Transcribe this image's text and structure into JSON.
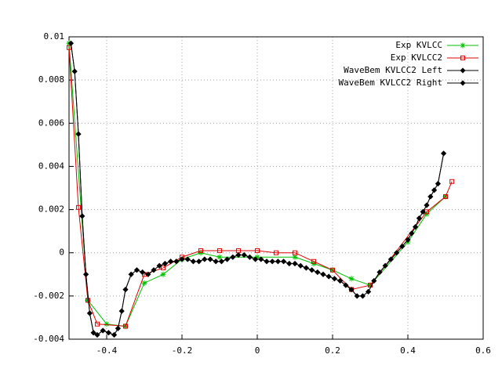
{
  "chart_data": {
    "type": "line",
    "xlim": [
      -0.5,
      0.6
    ],
    "xticks": [
      -0.4,
      -0.2,
      0,
      0.2,
      0.4,
      0.6
    ],
    "ylim": [
      -0.004,
      0.01
    ],
    "yticks": [
      -0.004,
      -0.002,
      0,
      0.002,
      0.004,
      0.006,
      0.008,
      0.01
    ],
    "grid": true,
    "legend": "top-right",
    "series": [
      {
        "name": "Exp KVLCC",
        "color": "#00c000",
        "marker": "asterisk",
        "x": [
          -0.5,
          -0.45,
          -0.4,
          -0.35,
          -0.3,
          -0.25,
          -0.2,
          -0.15,
          -0.1,
          0,
          0.1,
          0.15,
          0.2,
          0.25,
          0.3,
          0.4,
          0.45,
          0.5
        ],
        "values": [
          0.0097,
          -0.0022,
          -0.0033,
          -0.0034,
          -0.0014,
          -0.001,
          -0.0003,
          0.0,
          -0.0002,
          -0.0002,
          -0.0002,
          -0.0005,
          -0.0008,
          -0.0012,
          -0.0015,
          0.0005,
          0.0018,
          0.0026
        ]
      },
      {
        "name": "Exp KVLCC2",
        "color": "#e00000",
        "marker": "square",
        "x": [
          -0.5,
          -0.475,
          -0.45,
          -0.425,
          -0.35,
          -0.3,
          -0.25,
          -0.2,
          -0.15,
          -0.1,
          -0.05,
          0,
          0.05,
          0.1,
          0.15,
          0.2,
          0.25,
          0.3,
          0.45,
          0.5,
          0.517
        ],
        "values": [
          0.0095,
          0.0021,
          -0.0022,
          -0.0033,
          -0.0034,
          -0.001,
          -0.0007,
          -0.0002,
          0.0001,
          0.0001,
          0.0001,
          0.0001,
          0.0,
          0.0,
          -0.0004,
          -0.0008,
          -0.0017,
          -0.0015,
          0.0019,
          0.0026,
          0.0033
        ]
      },
      {
        "name": "WaveBem KVLCC2 Left",
        "color": "#000000",
        "marker": "diamond",
        "x": [
          -0.495,
          -0.485,
          -0.475,
          -0.465,
          -0.455,
          -0.445,
          -0.435,
          -0.425,
          -0.41,
          -0.395,
          -0.38,
          -0.37,
          -0.36,
          -0.35,
          -0.335,
          -0.32,
          -0.305,
          -0.29,
          -0.275,
          -0.26,
          -0.245,
          -0.23,
          -0.215,
          -0.2,
          -0.185,
          -0.17,
          -0.155,
          -0.14,
          -0.125,
          -0.11,
          -0.095,
          -0.08,
          -0.065,
          -0.05,
          -0.035,
          -0.02,
          -0.005,
          0.01,
          0.025,
          0.04,
          0.055,
          0.07,
          0.085,
          0.1,
          0.115,
          0.13,
          0.145,
          0.16,
          0.175,
          0.19,
          0.205,
          0.22,
          0.235,
          0.25,
          0.265,
          0.28,
          0.295,
          0.31,
          0.325,
          0.34,
          0.355,
          0.37,
          0.385,
          0.4,
          0.41,
          0.42,
          0.43,
          0.44,
          0.45,
          0.46,
          0.47,
          0.48,
          0.495
        ],
        "values": [
          0.0097,
          0.0084,
          0.0055,
          0.0017,
          -0.001,
          -0.0028,
          -0.0037,
          -0.0038,
          -0.0036,
          -0.0037,
          -0.0038,
          -0.0035,
          -0.0027,
          -0.0017,
          -0.001,
          -0.0008,
          -0.0009,
          -0.001,
          -0.0008,
          -0.0006,
          -0.0005,
          -0.0004,
          -0.0004,
          -0.0003,
          -0.0003,
          -0.0004,
          -0.0004,
          -0.0003,
          -0.0003,
          -0.0004,
          -0.0004,
          -0.0003,
          -0.0002,
          -0.0001,
          -0.0001,
          -0.0002,
          -0.0003,
          -0.0003,
          -0.0004,
          -0.0004,
          -0.0004,
          -0.0004,
          -0.0005,
          -0.0005,
          -0.0006,
          -0.0007,
          -0.0008,
          -0.0009,
          -0.001,
          -0.0011,
          -0.0012,
          -0.0013,
          -0.0015,
          -0.0017,
          -0.002,
          -0.002,
          -0.0018,
          -0.0013,
          -0.0009,
          -0.0006,
          -0.0003,
          0.0,
          0.0003,
          0.0006,
          0.0009,
          0.0012,
          0.0016,
          0.0019,
          0.0022,
          0.0026,
          0.0029,
          0.0032,
          0.0046
        ]
      },
      {
        "name": "WaveBem KVLCC2 Right",
        "color": "#000000",
        "marker": "diamond",
        "x": [
          -0.495,
          -0.485,
          -0.475,
          -0.465,
          -0.455,
          -0.445,
          -0.435,
          -0.425,
          -0.41,
          -0.395,
          -0.38,
          -0.37,
          -0.36,
          -0.35,
          -0.335,
          -0.32,
          -0.305,
          -0.29,
          -0.275,
          -0.26,
          -0.245,
          -0.23,
          -0.215,
          -0.2,
          -0.185,
          -0.17,
          -0.155,
          -0.14,
          -0.125,
          -0.11,
          -0.095,
          -0.08,
          -0.065,
          -0.05,
          -0.035,
          -0.02,
          -0.005,
          0.01,
          0.025,
          0.04,
          0.055,
          0.07,
          0.085,
          0.1,
          0.115,
          0.13,
          0.145,
          0.16,
          0.175,
          0.19,
          0.205,
          0.22,
          0.235,
          0.25,
          0.265,
          0.28,
          0.295,
          0.31,
          0.325,
          0.34,
          0.355,
          0.37,
          0.385,
          0.4,
          0.41,
          0.42,
          0.43,
          0.44,
          0.45,
          0.46,
          0.47,
          0.48,
          0.495
        ],
        "values": [
          0.0097,
          0.0084,
          0.0055,
          0.0017,
          -0.001,
          -0.0028,
          -0.0037,
          -0.0038,
          -0.0036,
          -0.0037,
          -0.0038,
          -0.0035,
          -0.0027,
          -0.0017,
          -0.001,
          -0.0008,
          -0.0009,
          -0.001,
          -0.0008,
          -0.0006,
          -0.0005,
          -0.0004,
          -0.0004,
          -0.0003,
          -0.0003,
          -0.0004,
          -0.0004,
          -0.0003,
          -0.0003,
          -0.0004,
          -0.0004,
          -0.0003,
          -0.0002,
          -0.0001,
          -0.0001,
          -0.0002,
          -0.0003,
          -0.0003,
          -0.0004,
          -0.0004,
          -0.0004,
          -0.0004,
          -0.0005,
          -0.0005,
          -0.0006,
          -0.0007,
          -0.0008,
          -0.0009,
          -0.001,
          -0.0011,
          -0.0012,
          -0.0013,
          -0.0015,
          -0.0017,
          -0.002,
          -0.002,
          -0.0018,
          -0.0013,
          -0.0009,
          -0.0006,
          -0.0003,
          0.0,
          0.0003,
          0.0006,
          0.0009,
          0.0012,
          0.0016,
          0.0019,
          0.0022,
          0.0026,
          0.0029,
          0.0032,
          0.0046
        ]
      }
    ]
  }
}
